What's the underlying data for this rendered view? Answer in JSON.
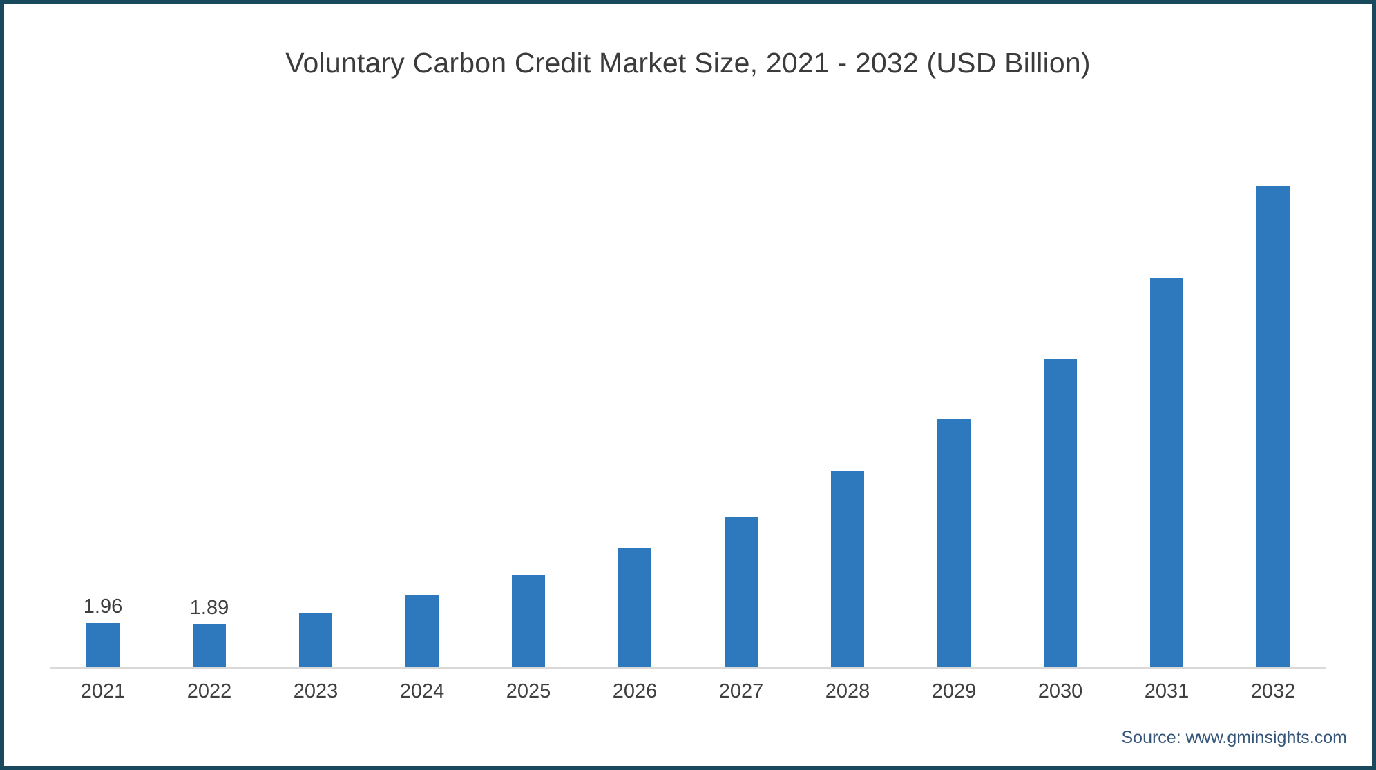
{
  "window": {
    "background": "#ffffff",
    "frame_border_color": "#18495c"
  },
  "chart_data": {
    "type": "bar",
    "title": "Voluntary Carbon Credit Market Size, 2021 - 2032 (USD Billion)",
    "categories": [
      "2021",
      "2022",
      "2023",
      "2024",
      "2025",
      "2026",
      "2027",
      "2028",
      "2029",
      "2030",
      "2031",
      "2032"
    ],
    "values": [
      1.96,
      1.89,
      2.4,
      3.2,
      4.1,
      5.3,
      6.7,
      8.7,
      11.0,
      13.7,
      17.3,
      21.4
    ],
    "data_labels": [
      "1.96",
      "1.89",
      "",
      "",
      "",
      "",
      "",
      "",
      "",
      "",
      "",
      ""
    ],
    "xlabel": "",
    "ylabel": "",
    "ylim": [
      0,
      22.6
    ],
    "grid": false,
    "legend_position": "none",
    "bar_color": "#2e78be",
    "axis_line_color": "#d9d9d9",
    "tick_label_color": "#3f3f3f",
    "title_color": "#3b3b3b"
  },
  "footer": {
    "source_text": "Source: www.gminsights.com",
    "source_color": "#35567a"
  }
}
